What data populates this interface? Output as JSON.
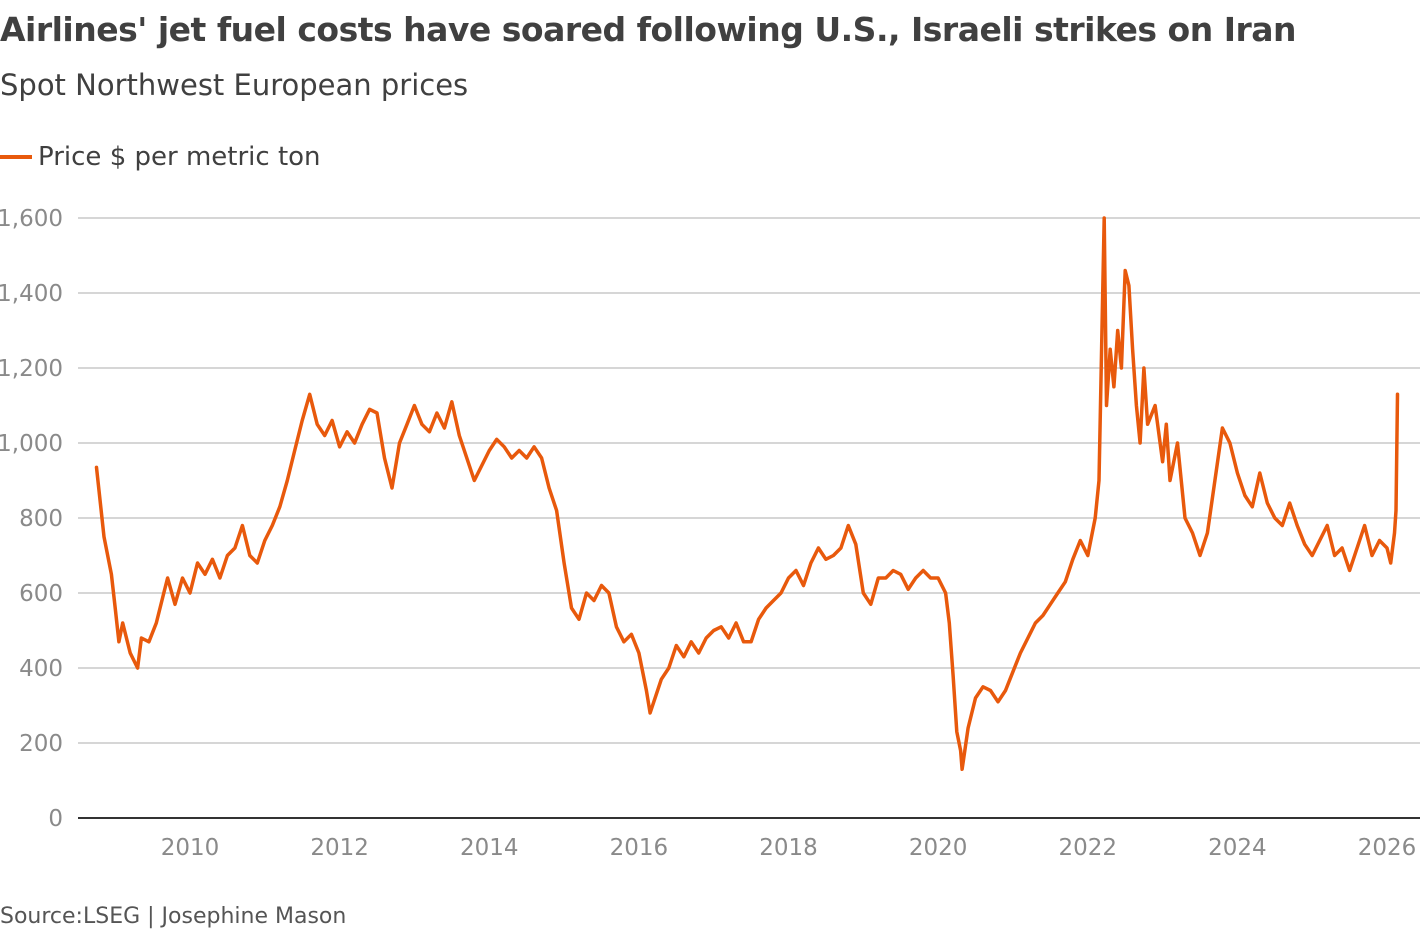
{
  "chart_data": {
    "type": "line",
    "title": "Airlines' jet fuel costs have soared following U.S., Israeli strikes on Iran",
    "subtitle": "Spot Northwest European prices",
    "source": "Source:LSEG | Josephine Mason",
    "xlabel": "",
    "ylabel": "",
    "xlim": [
      2008.2,
      2026.45
    ],
    "ylim": [
      0,
      1600
    ],
    "x_ticks": [
      2010,
      2012,
      2014,
      2016,
      2018,
      2020,
      2022,
      2024,
      2026
    ],
    "x_tick_labels": [
      "2010",
      "2012",
      "2014",
      "2016",
      "2018",
      "2020",
      "2022",
      "2024",
      "2026"
    ],
    "y_ticks": [
      0,
      200,
      400,
      600,
      800,
      1000,
      1200,
      1400,
      1600
    ],
    "y_tick_labels": [
      "0",
      "200",
      "400",
      "600",
      "800",
      "1,000",
      "1,200",
      "1,400",
      "1,600"
    ],
    "grid": "horizontal",
    "legend_placement": "top-left",
    "colors": {
      "series": "#e8590c",
      "grid": "#c8c8c8",
      "axis": "#333333"
    },
    "series": [
      {
        "name": "Price $ per metric ton",
        "points": [
          [
            2008.75,
            935
          ],
          [
            2008.85,
            750
          ],
          [
            2008.95,
            650
          ],
          [
            2009.0,
            560
          ],
          [
            2009.05,
            470
          ],
          [
            2009.1,
            520
          ],
          [
            2009.2,
            440
          ],
          [
            2009.3,
            400
          ],
          [
            2009.35,
            480
          ],
          [
            2009.45,
            470
          ],
          [
            2009.55,
            520
          ],
          [
            2009.65,
            600
          ],
          [
            2009.7,
            640
          ],
          [
            2009.8,
            570
          ],
          [
            2009.9,
            640
          ],
          [
            2010.0,
            600
          ],
          [
            2010.1,
            680
          ],
          [
            2010.2,
            650
          ],
          [
            2010.3,
            690
          ],
          [
            2010.4,
            640
          ],
          [
            2010.5,
            700
          ],
          [
            2010.6,
            720
          ],
          [
            2010.7,
            780
          ],
          [
            2010.8,
            700
          ],
          [
            2010.9,
            680
          ],
          [
            2011.0,
            740
          ],
          [
            2011.1,
            780
          ],
          [
            2011.2,
            830
          ],
          [
            2011.3,
            900
          ],
          [
            2011.4,
            980
          ],
          [
            2011.5,
            1060
          ],
          [
            2011.6,
            1130
          ],
          [
            2011.7,
            1050
          ],
          [
            2011.8,
            1020
          ],
          [
            2011.9,
            1060
          ],
          [
            2012.0,
            990
          ],
          [
            2012.1,
            1030
          ],
          [
            2012.2,
            1000
          ],
          [
            2012.3,
            1050
          ],
          [
            2012.4,
            1090
          ],
          [
            2012.5,
            1080
          ],
          [
            2012.6,
            960
          ],
          [
            2012.7,
            880
          ],
          [
            2012.8,
            1000
          ],
          [
            2012.9,
            1050
          ],
          [
            2013.0,
            1100
          ],
          [
            2013.1,
            1050
          ],
          [
            2013.2,
            1030
          ],
          [
            2013.3,
            1080
          ],
          [
            2013.4,
            1040
          ],
          [
            2013.5,
            1110
          ],
          [
            2013.6,
            1020
          ],
          [
            2013.7,
            960
          ],
          [
            2013.8,
            900
          ],
          [
            2013.9,
            940
          ],
          [
            2014.0,
            980
          ],
          [
            2014.1,
            1010
          ],
          [
            2014.2,
            990
          ],
          [
            2014.3,
            960
          ],
          [
            2014.4,
            980
          ],
          [
            2014.5,
            960
          ],
          [
            2014.6,
            990
          ],
          [
            2014.7,
            960
          ],
          [
            2014.8,
            880
          ],
          [
            2014.9,
            820
          ],
          [
            2015.0,
            680
          ],
          [
            2015.1,
            560
          ],
          [
            2015.2,
            530
          ],
          [
            2015.3,
            600
          ],
          [
            2015.4,
            580
          ],
          [
            2015.5,
            620
          ],
          [
            2015.6,
            600
          ],
          [
            2015.7,
            510
          ],
          [
            2015.8,
            470
          ],
          [
            2015.9,
            490
          ],
          [
            2016.0,
            440
          ],
          [
            2016.1,
            340
          ],
          [
            2016.15,
            280
          ],
          [
            2016.3,
            370
          ],
          [
            2016.4,
            400
          ],
          [
            2016.5,
            460
          ],
          [
            2016.6,
            430
          ],
          [
            2016.7,
            470
          ],
          [
            2016.8,
            440
          ],
          [
            2016.9,
            480
          ],
          [
            2017.0,
            500
          ],
          [
            2017.1,
            510
          ],
          [
            2017.2,
            480
          ],
          [
            2017.3,
            520
          ],
          [
            2017.4,
            470
          ],
          [
            2017.5,
            470
          ],
          [
            2017.6,
            530
          ],
          [
            2017.7,
            560
          ],
          [
            2017.8,
            580
          ],
          [
            2017.9,
            600
          ],
          [
            2018.0,
            640
          ],
          [
            2018.1,
            660
          ],
          [
            2018.2,
            620
          ],
          [
            2018.3,
            680
          ],
          [
            2018.4,
            720
          ],
          [
            2018.5,
            690
          ],
          [
            2018.6,
            700
          ],
          [
            2018.7,
            720
          ],
          [
            2018.8,
            780
          ],
          [
            2018.9,
            730
          ],
          [
            2019.0,
            600
          ],
          [
            2019.1,
            570
          ],
          [
            2019.2,
            640
          ],
          [
            2019.3,
            640
          ],
          [
            2019.4,
            660
          ],
          [
            2019.5,
            650
          ],
          [
            2019.6,
            610
          ],
          [
            2019.7,
            640
          ],
          [
            2019.8,
            660
          ],
          [
            2019.9,
            640
          ],
          [
            2020.0,
            640
          ],
          [
            2020.1,
            600
          ],
          [
            2020.15,
            520
          ],
          [
            2020.2,
            380
          ],
          [
            2020.25,
            230
          ],
          [
            2020.3,
            180
          ],
          [
            2020.32,
            130
          ],
          [
            2020.4,
            240
          ],
          [
            2020.5,
            320
          ],
          [
            2020.6,
            350
          ],
          [
            2020.7,
            340
          ],
          [
            2020.8,
            310
          ],
          [
            2020.9,
            340
          ],
          [
            2021.0,
            390
          ],
          [
            2021.1,
            440
          ],
          [
            2021.2,
            480
          ],
          [
            2021.3,
            520
          ],
          [
            2021.4,
            540
          ],
          [
            2021.5,
            570
          ],
          [
            2021.6,
            600
          ],
          [
            2021.7,
            630
          ],
          [
            2021.8,
            690
          ],
          [
            2021.9,
            740
          ],
          [
            2022.0,
            700
          ],
          [
            2022.1,
            800
          ],
          [
            2022.15,
            900
          ],
          [
            2022.2,
            1400
          ],
          [
            2022.22,
            1600
          ],
          [
            2022.25,
            1100
          ],
          [
            2022.3,
            1250
          ],
          [
            2022.35,
            1150
          ],
          [
            2022.4,
            1300
          ],
          [
            2022.45,
            1200
          ],
          [
            2022.5,
            1460
          ],
          [
            2022.55,
            1420
          ],
          [
            2022.6,
            1250
          ],
          [
            2022.65,
            1100
          ],
          [
            2022.7,
            1000
          ],
          [
            2022.75,
            1200
          ],
          [
            2022.8,
            1050
          ],
          [
            2022.9,
            1100
          ],
          [
            2023.0,
            950
          ],
          [
            2023.05,
            1050
          ],
          [
            2023.1,
            900
          ],
          [
            2023.2,
            1000
          ],
          [
            2023.3,
            800
          ],
          [
            2023.4,
            760
          ],
          [
            2023.5,
            700
          ],
          [
            2023.6,
            760
          ],
          [
            2023.7,
            900
          ],
          [
            2023.8,
            1040
          ],
          [
            2023.9,
            1000
          ],
          [
            2024.0,
            920
          ],
          [
            2024.1,
            860
          ],
          [
            2024.2,
            830
          ],
          [
            2024.3,
            920
          ],
          [
            2024.4,
            840
          ],
          [
            2024.5,
            800
          ],
          [
            2024.6,
            780
          ],
          [
            2024.7,
            840
          ],
          [
            2024.8,
            780
          ],
          [
            2024.9,
            730
          ],
          [
            2025.0,
            700
          ],
          [
            2025.1,
            740
          ],
          [
            2025.2,
            780
          ],
          [
            2025.3,
            700
          ],
          [
            2025.4,
            720
          ],
          [
            2025.5,
            660
          ],
          [
            2025.6,
            720
          ],
          [
            2025.7,
            780
          ],
          [
            2025.8,
            700
          ],
          [
            2025.9,
            740
          ],
          [
            2026.0,
            720
          ],
          [
            2026.05,
            680
          ],
          [
            2026.1,
            760
          ],
          [
            2026.12,
            820
          ],
          [
            2026.14,
            1130
          ]
        ]
      }
    ]
  }
}
